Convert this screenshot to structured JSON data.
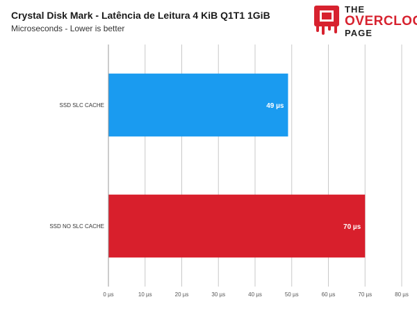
{
  "chart_data": {
    "type": "bar",
    "orientation": "horizontal",
    "title": "Crystal Disk Mark - Latência de Leitura 4 KiB Q1T1 1GiB",
    "subtitle": "Microseconds - Lower is better",
    "categories": [
      "SSD SLC CACHE",
      "SSD NO SLC CACHE"
    ],
    "values": [
      49,
      70
    ],
    "value_labels": [
      "49 µs",
      "70 µs"
    ],
    "bar_colors": [
      "#1a9bf0",
      "#d81f2c"
    ],
    "xlim": [
      0,
      80
    ],
    "ticks": [
      0,
      10,
      20,
      30,
      40,
      50,
      60,
      70,
      80
    ],
    "tick_labels": [
      "0 µs",
      "10 µs",
      "20 µs",
      "30 µs",
      "40 µs",
      "50 µs",
      "60 µs",
      "70 µs",
      "80 µs"
    ],
    "grid": true,
    "xlabel": "",
    "ylabel": ""
  },
  "logo": {
    "line1": "THE",
    "line2": "OVERCLOCK",
    "line3": "PAGE",
    "icon": "chip-drip-icon",
    "accent": "#d7222f"
  }
}
